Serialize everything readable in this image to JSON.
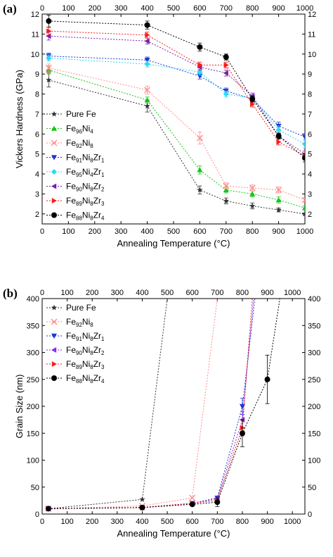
{
  "chart_data": [
    {
      "type": "line",
      "panel_label": "(a)",
      "xlabel": "Annealing Temperature (°C)",
      "ylabel": "Vickers Hardness (GPa)",
      "xlim": [
        0,
        1000
      ],
      "ylim": [
        1.5,
        12
      ],
      "x_ticks": [
        0,
        100,
        200,
        300,
        400,
        500,
        600,
        700,
        800,
        900,
        1000
      ],
      "y_ticks": [
        2,
        3,
        4,
        5,
        6,
        7,
        8,
        9,
        10,
        11,
        12
      ],
      "grid": false,
      "mirrored_axes": "top and right axes repeat the tick labels",
      "legend_location": "lower-left",
      "x": [
        25,
        400,
        600,
        700,
        800,
        900,
        1000
      ],
      "series": [
        {
          "name": "Pure Fe",
          "parts": [
            [
              "Pure Fe",
              ""
            ]
          ],
          "color": "#333333",
          "marker": "star",
          "values": [
            8.7,
            7.4,
            3.2,
            2.65,
            2.4,
            2.2,
            2.0
          ],
          "errors": [
            0.35,
            0.3,
            0.2,
            0.15,
            0.15,
            0.1,
            0.05
          ]
        },
        {
          "name": "Fe96Ni4",
          "parts": [
            [
              "Fe",
              ""
            ],
            [
              "96",
              "sub"
            ],
            [
              "Ni",
              ""
            ],
            [
              "4",
              "sub"
            ]
          ],
          "color": "#17c417",
          "marker": "triangle-up",
          "values": [
            9.2,
            7.7,
            4.2,
            3.2,
            3.0,
            2.7,
            2.3
          ],
          "errors": [
            0.2,
            0.15,
            0.2,
            0.15,
            0.15,
            0.15,
            0.1
          ]
        },
        {
          "name": "Fe92Ni8",
          "parts": [
            [
              "Fe",
              ""
            ],
            [
              "92",
              "sub"
            ],
            [
              "Ni",
              ""
            ],
            [
              "8",
              "sub"
            ]
          ],
          "color": "#ff8c8c",
          "marker": "x",
          "values": [
            9.3,
            8.2,
            5.8,
            3.4,
            3.3,
            3.2,
            2.7
          ],
          "errors": [
            0.2,
            0.2,
            0.3,
            0.15,
            0.15,
            0.15,
            0.1
          ]
        },
        {
          "name": "Fe91Ni8Zr1",
          "parts": [
            [
              "Fe",
              ""
            ],
            [
              "91",
              "sub"
            ],
            [
              "Ni",
              ""
            ],
            [
              "8",
              "sub"
            ],
            [
              "Zr",
              ""
            ],
            [
              "1",
              "sub"
            ]
          ],
          "color": "#1f33d6",
          "marker": "triangle-down",
          "values": [
            9.9,
            9.7,
            8.9,
            8.15,
            7.75,
            6.4,
            5.85
          ],
          "errors": [
            0.15,
            0.15,
            0.15,
            0.15,
            0.15,
            0.2,
            0.15
          ]
        },
        {
          "name": "Fe95Ni4Zr1",
          "parts": [
            [
              "Fe",
              ""
            ],
            [
              "95",
              "sub"
            ],
            [
              "Ni",
              ""
            ],
            [
              "4",
              "sub"
            ],
            [
              "Zr",
              ""
            ],
            [
              "1",
              "sub"
            ]
          ],
          "color": "#29dbf5",
          "marker": "diamond",
          "values": [
            9.8,
            9.5,
            9.1,
            8.0,
            7.8,
            6.2,
            5.5
          ],
          "errors": [
            0.15,
            0.15,
            0.15,
            0.15,
            0.15,
            0.2,
            0.2
          ]
        },
        {
          "name": "Fe90Ni8Zr2",
          "parts": [
            [
              "Fe",
              ""
            ],
            [
              "90",
              "sub"
            ],
            [
              "Ni",
              ""
            ],
            [
              "8",
              "sub"
            ],
            [
              "Zr",
              ""
            ],
            [
              "2",
              "sub"
            ]
          ],
          "color": "#7a1fa8",
          "marker": "triangle-left",
          "values": [
            10.9,
            10.65,
            9.35,
            9.05,
            7.9,
            5.9,
            5.0
          ],
          "errors": [
            0.2,
            0.15,
            0.15,
            0.15,
            0.15,
            0.15,
            0.15
          ]
        },
        {
          "name": "Fe89Ni8Zr3",
          "parts": [
            [
              "Fe",
              ""
            ],
            [
              "89",
              "sub"
            ],
            [
              "Ni",
              ""
            ],
            [
              "8",
              "sub"
            ],
            [
              "Zr",
              ""
            ],
            [
              "3",
              "sub"
            ]
          ],
          "color": "#ff1a1a",
          "marker": "triangle-right",
          "values": [
            11.15,
            10.95,
            9.45,
            9.45,
            7.5,
            5.6,
            4.9
          ],
          "errors": [
            0.2,
            0.15,
            0.15,
            0.15,
            0.15,
            0.15,
            0.15
          ]
        },
        {
          "name": "Fe88Ni8Zr4",
          "parts": [
            [
              "Fe",
              ""
            ],
            [
              "88",
              "sub"
            ],
            [
              "Ni",
              ""
            ],
            [
              "8",
              "sub"
            ],
            [
              "Zr",
              ""
            ],
            [
              "4",
              "sub"
            ]
          ],
          "color": "#000000",
          "marker": "circle",
          "values": [
            11.65,
            11.45,
            10.35,
            9.85,
            7.75,
            5.9,
            4.8
          ],
          "errors": [
            0.3,
            0.2,
            0.2,
            0.15,
            0.15,
            0.15,
            0.2
          ]
        }
      ]
    },
    {
      "type": "line",
      "panel_label": "(b)",
      "xlabel": "Annealing Temperature (°C)",
      "ylabel": "Grain Size (nm)",
      "xlim": [
        0,
        1050
      ],
      "ylim": [
        0,
        400
      ],
      "x_ticks": [
        0,
        100,
        200,
        300,
        400,
        500,
        600,
        700,
        800,
        900,
        1000
      ],
      "y_ticks": [
        0,
        50,
        100,
        150,
        200,
        250,
        300,
        350,
        400
      ],
      "grid": false,
      "mirrored_axes": "top and right axes repeat the tick labels",
      "legend_location": "upper-left",
      "series": [
        {
          "name": "Pure Fe",
          "parts": [
            [
              "Pure Fe",
              ""
            ]
          ],
          "color": "#333333",
          "marker": "star",
          "x": [
            25,
            400,
            500
          ],
          "values": [
            10,
            27,
            400
          ],
          "errors": [
            0,
            0,
            0
          ]
        },
        {
          "name": "Fe92Ni8",
          "parts": [
            [
              "Fe",
              ""
            ],
            [
              "92",
              "sub"
            ],
            [
              "Ni",
              ""
            ],
            [
              "8",
              "sub"
            ]
          ],
          "color": "#ff8c8c",
          "marker": "x",
          "x": [
            25,
            400,
            600,
            700
          ],
          "values": [
            10,
            15,
            30,
            400
          ],
          "errors": [
            0,
            0,
            0,
            0
          ]
        },
        {
          "name": "Fe91Ni8Zr1",
          "parts": [
            [
              "Fe",
              ""
            ],
            [
              "91",
              "sub"
            ],
            [
              "Ni",
              ""
            ],
            [
              "8",
              "sub"
            ],
            [
              "Zr",
              ""
            ],
            [
              "1",
              "sub"
            ]
          ],
          "color": "#1f33d6",
          "marker": "triangle-down",
          "x": [
            25,
            400,
            600,
            700,
            800,
            850
          ],
          "values": [
            10,
            12,
            20,
            30,
            200,
            400
          ],
          "errors": [
            0,
            0,
            0,
            0,
            15,
            0
          ]
        },
        {
          "name": "Fe90Ni8Zr2",
          "parts": [
            [
              "Fe",
              ""
            ],
            [
              "90",
              "sub"
            ],
            [
              "Ni",
              ""
            ],
            [
              "8",
              "sub"
            ],
            [
              "Zr",
              ""
            ],
            [
              "2",
              "sub"
            ]
          ],
          "color": "#8a2be2",
          "marker": "triangle-left",
          "x": [
            25,
            400,
            600,
            700,
            800,
            845
          ],
          "values": [
            10,
            12,
            20,
            28,
            175,
            400
          ],
          "errors": [
            0,
            0,
            0,
            0,
            15,
            0
          ]
        },
        {
          "name": "Fe89Ni8Zr3",
          "parts": [
            [
              "Fe",
              ""
            ],
            [
              "89",
              "sub"
            ],
            [
              "Ni",
              ""
            ],
            [
              "8",
              "sub"
            ],
            [
              "Zr",
              ""
            ],
            [
              "3",
              "sub"
            ]
          ],
          "color": "#ff1a1a",
          "marker": "triangle-right",
          "x": [
            25,
            400,
            600,
            700,
            800,
            840
          ],
          "values": [
            10,
            12,
            20,
            25,
            160,
            400
          ],
          "errors": [
            0,
            0,
            0,
            0,
            15,
            0
          ]
        },
        {
          "name": "Fe88Ni8Zr4",
          "parts": [
            [
              "Fe",
              ""
            ],
            [
              "88",
              "sub"
            ],
            [
              "Ni",
              ""
            ],
            [
              "8",
              "sub"
            ],
            [
              "Zr",
              ""
            ],
            [
              "4",
              "sub"
            ]
          ],
          "color": "#000000",
          "marker": "circle",
          "x": [
            25,
            400,
            600,
            700,
            800,
            900,
            950
          ],
          "values": [
            10,
            12,
            18,
            22,
            150,
            250,
            400
          ],
          "errors": [
            2,
            2,
            3,
            8,
            25,
            45,
            0
          ]
        }
      ]
    }
  ]
}
